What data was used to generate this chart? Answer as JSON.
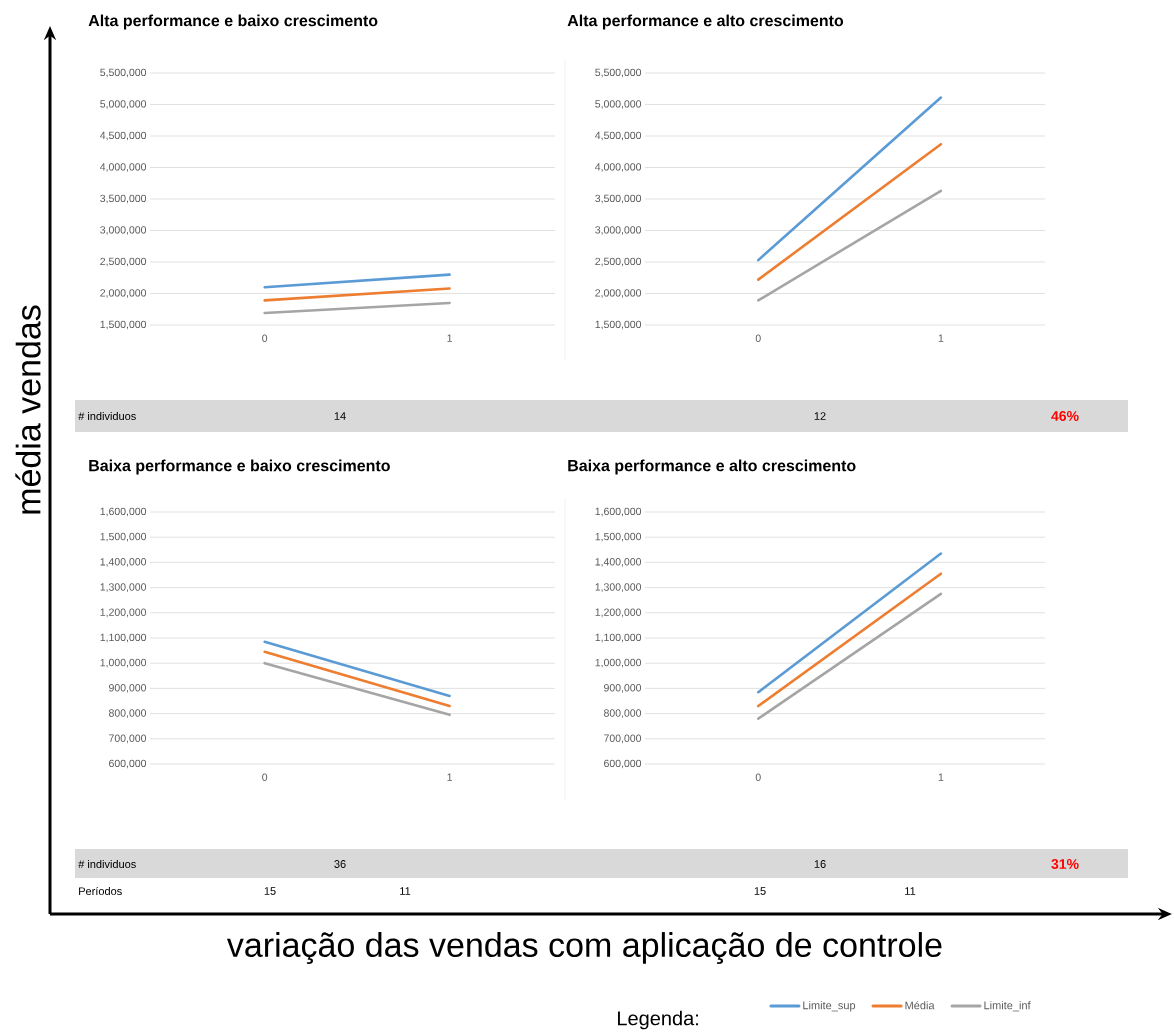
{
  "chart_data": [
    {
      "type": "line",
      "title": "Alta performance e baixo crescimento",
      "ylabel": "média vendas",
      "categories": [
        "0",
        "1"
      ],
      "series": [
        {
          "color": "#5b9bd5",
          "values": [
            2100000,
            2300000
          ]
        },
        {
          "color": "#ed7d31",
          "values": [
            1890000,
            2080000
          ]
        },
        {
          "color": "#a5a5a5",
          "values": [
            1690000,
            1850000
          ]
        }
      ],
      "ylim": [
        1500000,
        5500000
      ],
      "yticks": [
        {
          "value": 1500000,
          "label": "1,500,000"
        },
        {
          "value": 2000000,
          "label": "2,000,000"
        },
        {
          "value": 2500000,
          "label": "2,500,000"
        },
        {
          "value": 3000000,
          "label": "3,000,000"
        },
        {
          "value": 3500000,
          "label": "3,500,000"
        },
        {
          "value": 4000000,
          "label": "4,000,000"
        },
        {
          "value": 4500000,
          "label": "4,500,000"
        },
        {
          "value": 5000000,
          "label": "5,000,000"
        },
        {
          "value": 5500000,
          "label": "5,500,000"
        }
      ],
      "grid": "y",
      "annotations": [
        "# individuos",
        "14"
      ]
    },
    {
      "type": "line",
      "title": "Alta performance e alto crescimento",
      "categories": [
        "0",
        "1"
      ],
      "series": [
        {
          "color": "#5b9bd5",
          "values": [
            2530000,
            5110000
          ]
        },
        {
          "color": "#ed7d31",
          "values": [
            2220000,
            4370000
          ]
        },
        {
          "color": "#a5a5a5",
          "values": [
            1890000,
            3630000
          ]
        }
      ],
      "ylim": [
        1500000,
        5500000
      ],
      "yticks": [
        {
          "value": 1500000,
          "label": "1,500,000"
        },
        {
          "value": 2000000,
          "label": "2,000,000"
        },
        {
          "value": 2500000,
          "label": "2,500,000"
        },
        {
          "value": 3000000,
          "label": "3,000,000"
        },
        {
          "value": 3500000,
          "label": "3,500,000"
        },
        {
          "value": 4000000,
          "label": "4,000,000"
        },
        {
          "value": 4500000,
          "label": "4,500,000"
        },
        {
          "value": 5000000,
          "label": "5,000,000"
        },
        {
          "value": 5500000,
          "label": "5,500,000"
        }
      ],
      "grid": "y",
      "annotations": [
        "12",
        "46%"
      ]
    },
    {
      "type": "line",
      "title": "Baixa performance e baixo crescimento",
      "xlabel": "variação das vendas com aplicação de controle",
      "categories": [
        "0",
        "1"
      ],
      "series": [
        {
          "color": "#5b9bd5",
          "values": [
            1085000,
            870000
          ]
        },
        {
          "color": "#ed7d31",
          "values": [
            1045000,
            830000
          ]
        },
        {
          "color": "#a5a5a5",
          "values": [
            1000000,
            795000
          ]
        }
      ],
      "ylim": [
        600000,
        1600000
      ],
      "yticks": [
        {
          "value": 600000,
          "label": "600,000"
        },
        {
          "value": 700000,
          "label": "700,000"
        },
        {
          "value": 800000,
          "label": "800,000"
        },
        {
          "value": 900000,
          "label": "900,000"
        },
        {
          "value": 1000000,
          "label": "1,000,000"
        },
        {
          "value": 1100000,
          "label": "1,100,000"
        },
        {
          "value": 1200000,
          "label": "1,200,000"
        },
        {
          "value": 1300000,
          "label": "1,300,000"
        },
        {
          "value": 1400000,
          "label": "1,400,000"
        },
        {
          "value": 1500000,
          "label": "1,500,000"
        },
        {
          "value": 1600000,
          "label": "1,600,000"
        }
      ],
      "grid": "y",
      "annotations": [
        "# individuos",
        "36",
        "Períodos",
        "15",
        "11"
      ]
    },
    {
      "type": "line",
      "title": "Baixa performance e alto crescimento",
      "categories": [
        "0",
        "1"
      ],
      "legend": "bottom",
      "legend_title": "Legenda:",
      "series": [
        {
          "name": "Limite_sup",
          "color": "#5b9bd5",
          "values": [
            885000,
            1435000
          ]
        },
        {
          "name": "Média",
          "color": "#ed7d31",
          "values": [
            830000,
            1355000
          ]
        },
        {
          "name": "Limite_inf",
          "color": "#a5a5a5",
          "values": [
            780000,
            1275000
          ]
        }
      ],
      "ylim": [
        600000,
        1600000
      ],
      "yticks": [
        {
          "value": 600000,
          "label": "600,000"
        },
        {
          "value": 700000,
          "label": "700,000"
        },
        {
          "value": 800000,
          "label": "800,000"
        },
        {
          "value": 900000,
          "label": "900,000"
        },
        {
          "value": 1000000,
          "label": "1,000,000"
        },
        {
          "value": 1100000,
          "label": "1,100,000"
        },
        {
          "value": 1200000,
          "label": "1,200,000"
        },
        {
          "value": 1300000,
          "label": "1,300,000"
        },
        {
          "value": 1400000,
          "label": "1,400,000"
        },
        {
          "value": 1500000,
          "label": "1,500,000"
        },
        {
          "value": 1600000,
          "label": "1,600,000"
        }
      ],
      "grid": "y",
      "annotations": [
        "16",
        "31%",
        "15",
        "11"
      ]
    }
  ]
}
